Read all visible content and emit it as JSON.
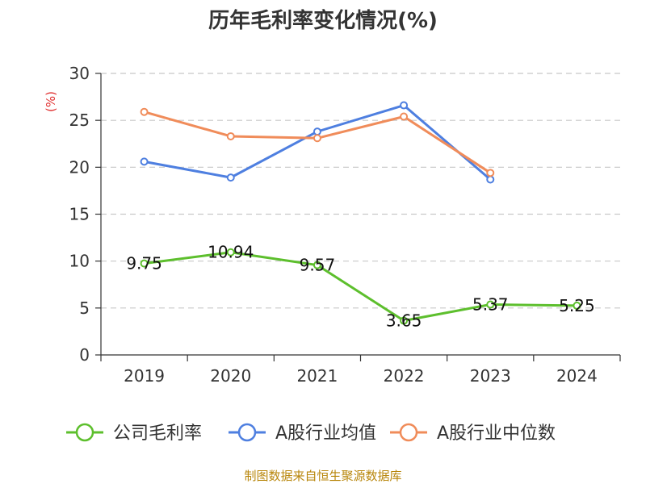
{
  "chart_data": {
    "type": "line",
    "title": "历年毛利率变化情况(%)",
    "ylabel": "(%)",
    "categories": [
      "2019",
      "2020",
      "2021",
      "2022",
      "2023",
      "2024"
    ],
    "ylim": [
      0,
      30
    ],
    "yticks": [
      0,
      5,
      10,
      15,
      20,
      25,
      30
    ],
    "grid": true,
    "legend_position": "bottom",
    "series": [
      {
        "name": "公司毛利率",
        "color": "#5dbf2d",
        "values": [
          9.75,
          10.94,
          9.57,
          3.65,
          5.37,
          5.25
        ],
        "labels": [
          "9.75",
          "10.94",
          "9.57",
          "3.65",
          "5.37",
          "5.25"
        ],
        "show_labels": true
      },
      {
        "name": "A股行业均值",
        "color": "#4e7fe0",
        "values": [
          20.6,
          18.9,
          23.8,
          26.6,
          18.7,
          null
        ],
        "show_labels": false
      },
      {
        "name": "A股行业中位数",
        "color": "#f08c5a",
        "values": [
          25.9,
          23.3,
          23.1,
          25.4,
          19.4,
          null
        ],
        "show_labels": false
      }
    ]
  },
  "footer": {
    "source": "制图数据来自恒生聚源数据库"
  }
}
